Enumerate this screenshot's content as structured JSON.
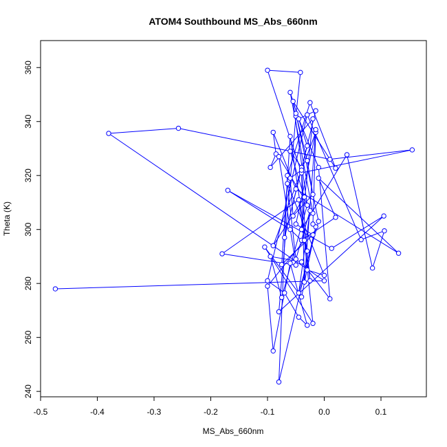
{
  "chart_data": {
    "type": "line",
    "title": "ATOM4 Southbound MS_Abs_660nm",
    "xlabel": "MS_Abs_660nm",
    "ylabel": "Theta (K)",
    "xlim": [
      -0.5,
      0.18
    ],
    "ylim": [
      238,
      370
    ],
    "x_ticks": [
      -0.5,
      -0.4,
      -0.3,
      -0.2,
      -0.1,
      0.0,
      0.1
    ],
    "x_tick_labels": [
      "-0.5",
      "-0.4",
      "-0.3",
      "-0.2",
      "-0.1",
      "0.0",
      "0.1"
    ],
    "y_ticks": [
      240,
      260,
      280,
      300,
      320,
      340,
      360
    ],
    "y_tick_labels": [
      "240",
      "260",
      "280",
      "300",
      "320",
      "340",
      "360"
    ],
    "grid": false,
    "series_color": "#0000ff",
    "marker": "open-circle",
    "x": [
      -0.474,
      0.0,
      -0.38,
      -0.257,
      0.01,
      0.155,
      -0.04,
      -0.1,
      -0.042,
      -0.05,
      -0.08,
      0.105,
      0.013,
      -0.17,
      -0.06,
      -0.04,
      0.02,
      -0.01,
      0.131,
      -0.05,
      -0.09,
      -0.085,
      -0.095,
      -0.02,
      -0.04,
      0.04,
      0.085,
      0.106,
      0.065,
      -0.03,
      -0.1,
      -0.07,
      -0.045,
      -0.03,
      -0.06,
      -0.09,
      -0.1,
      -0.035,
      -0.02,
      -0.105,
      -0.04,
      -0.015,
      -0.08,
      -0.065,
      -0.025,
      0.02,
      -0.055,
      -0.03,
      -0.075,
      -0.095,
      -0.04,
      0.01,
      -0.01,
      -0.045,
      -0.015,
      -0.07,
      -0.03,
      -0.06,
      -0.02,
      -0.08,
      -0.05,
      -0.18,
      -0.045,
      -0.025,
      -0.03,
      -0.06,
      -0.075,
      -0.02,
      -0.05,
      -0.015,
      -0.09,
      -0.035,
      -0.06,
      -0.04,
      -0.03,
      0.0,
      -0.065,
      -0.05,
      -0.025,
      -0.045,
      -0.01,
      -0.05,
      -0.03,
      -0.02,
      -0.055,
      -0.06,
      -0.04,
      -0.035,
      -0.015,
      -0.02
    ],
    "y": [
      278,
      281,
      335.6,
      337.5,
      326,
      329.5,
      321,
      359,
      358.2,
      342,
      269.5,
      305,
      293,
      314.5,
      300,
      296,
      304.5,
      319,
      291.2,
      315,
      336,
      328,
      323,
      341,
      300,
      327.7,
      285.7,
      299.5,
      296.2,
      342.5,
      281,
      276.5,
      267.5,
      264.5,
      287.5,
      255,
      279,
      296,
      265.2,
      293.5,
      275,
      301,
      243.5,
      320,
      347,
      322.7,
      347.5,
      309,
      274.8,
      290,
      288,
      274.3,
      323,
      341,
      344,
      297,
      331,
      350.8,
      306,
      327,
      286.8,
      291,
      311,
      281,
      292,
      334.5,
      287,
      298,
      302,
      336,
      294,
      312,
      329,
      323,
      285,
      283,
      317,
      289,
      307,
      276.5,
      303,
      343,
      325.5,
      313,
      305,
      319,
      322,
      280.5,
      337,
      302
    ]
  }
}
